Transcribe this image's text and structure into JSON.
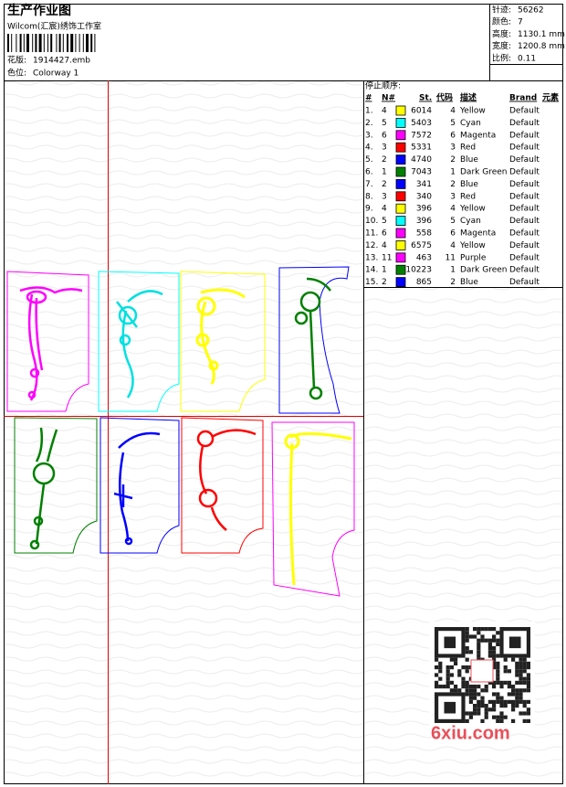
{
  "header": {
    "title": "生产作业图",
    "studio": "Wilcom(汇宸)绣饰工作室",
    "design_label": "花版:",
    "design": "1914427.emb",
    "colorway_label": "色位:",
    "colorway": "Colorway 1"
  },
  "stats": [
    {
      "label": "针迹:",
      "value": "56262"
    },
    {
      "label": "颜色:",
      "value": "7"
    },
    {
      "label": "高度:",
      "value": "1130.1 mm"
    },
    {
      "label": "宽度:",
      "value": "1200.8 mm"
    },
    {
      "label": "比例:",
      "value": "0.11"
    }
  ],
  "table": {
    "title": "停止顺序:",
    "columns": [
      "#",
      "N#",
      "St.",
      "代码",
      "描述",
      "Brand",
      "元素"
    ],
    "rows": [
      {
        "num": "1.",
        "n": "4",
        "color": "#ffff00",
        "st": "6014",
        "code": "4",
        "desc": "Yellow",
        "brand": "Default"
      },
      {
        "num": "2.",
        "n": "5",
        "color": "#00ffff",
        "st": "5403",
        "code": "5",
        "desc": "Cyan",
        "brand": "Default"
      },
      {
        "num": "3.",
        "n": "6",
        "color": "#ff00ff",
        "st": "7572",
        "code": "6",
        "desc": "Magenta",
        "brand": "Default"
      },
      {
        "num": "4.",
        "n": "3",
        "color": "#ff0000",
        "st": "5331",
        "code": "3",
        "desc": "Red",
        "brand": "Default"
      },
      {
        "num": "5.",
        "n": "2",
        "color": "#0000ff",
        "st": "4740",
        "code": "2",
        "desc": "Blue",
        "brand": "Default"
      },
      {
        "num": "6.",
        "n": "1",
        "color": "#008000",
        "st": "7043",
        "code": "1",
        "desc": "Dark Green",
        "brand": "Default"
      },
      {
        "num": "7.",
        "n": "2",
        "color": "#0000ff",
        "st": "341",
        "code": "2",
        "desc": "Blue",
        "brand": "Default"
      },
      {
        "num": "8.",
        "n": "3",
        "color": "#ff0000",
        "st": "340",
        "code": "3",
        "desc": "Red",
        "brand": "Default"
      },
      {
        "num": "9.",
        "n": "4",
        "color": "#ffff00",
        "st": "396",
        "code": "4",
        "desc": "Yellow",
        "brand": "Default"
      },
      {
        "num": "10.",
        "n": "5",
        "color": "#00ffff",
        "st": "396",
        "code": "5",
        "desc": "Cyan",
        "brand": "Default"
      },
      {
        "num": "11.",
        "n": "6",
        "color": "#ff00ff",
        "st": "558",
        "code": "6",
        "desc": "Magenta",
        "brand": "Default"
      },
      {
        "num": "12.",
        "n": "4",
        "color": "#ffff00",
        "st": "6575",
        "code": "4",
        "desc": "Yellow",
        "brand": "Default"
      },
      {
        "num": "13.",
        "n": "11",
        "color": "#ff00ff",
        "st": "463",
        "code": "11",
        "desc": "Purple",
        "brand": "Default"
      },
      {
        "num": "14.",
        "n": "1",
        "color": "#008000",
        "st": "10223",
        "code": "1",
        "desc": "Dark Green",
        "brand": "Default"
      },
      {
        "num": "15.",
        "n": "2",
        "color": "#0000ff",
        "st": "865",
        "code": "2",
        "desc": "Blue",
        "brand": "Default"
      }
    ]
  },
  "watermark": "6xiu.com"
}
